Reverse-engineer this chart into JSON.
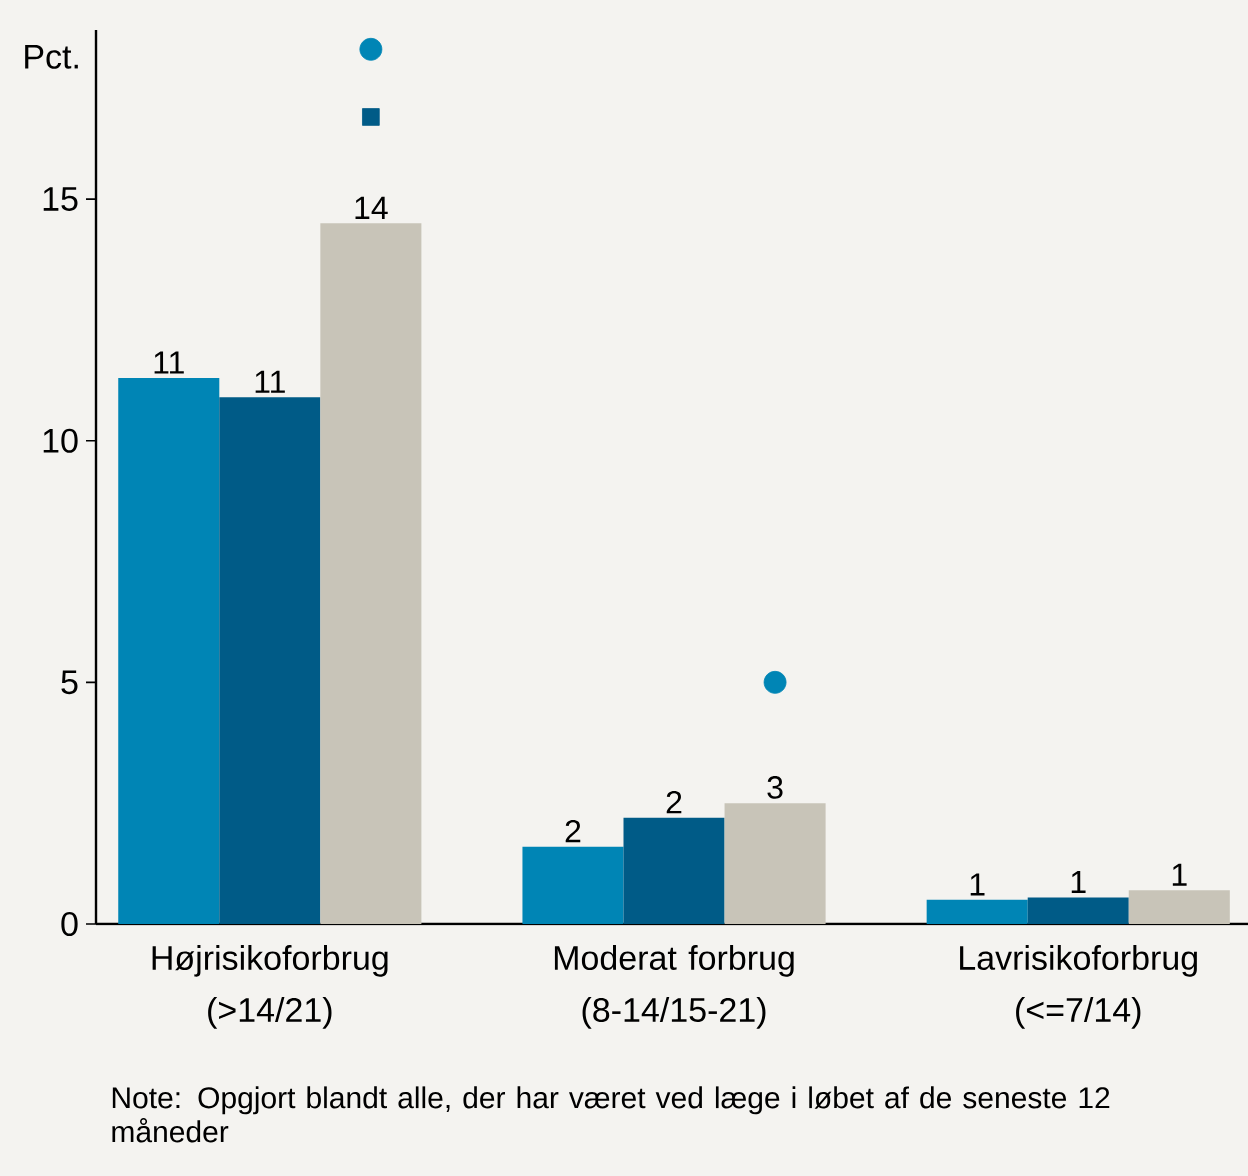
{
  "chart_data": {
    "type": "bar",
    "ylabel": "Pct.",
    "categories": [
      "Højrisikoforbrug (>14/21)",
      "Moderat forbrug (8-14/15-21)",
      "Lavrisikoforbrug (<=7/14)"
    ],
    "series": [
      {
        "color": "#0085b5",
        "values": [
          11.3,
          1.6,
          0.5
        ],
        "value_labels": [
          "11",
          "2",
          "1"
        ]
      },
      {
        "color": "#005b87",
        "values": [
          10.9,
          2.2,
          0.55
        ],
        "value_labels": [
          "11",
          "2",
          "1"
        ]
      },
      {
        "color": "#c8c4b8",
        "values": [
          14.5,
          2.5,
          0.7
        ],
        "value_labels": [
          "14",
          "3",
          "1"
        ]
      },
      {
        "type": "scatter",
        "marker": "circle",
        "color": "#0085b5",
        "values": [
          18.1,
          5.0,
          null
        ]
      },
      {
        "type": "scatter",
        "marker": "square",
        "color": "#005b87",
        "values": [
          16.7,
          null,
          null
        ]
      }
    ],
    "ylim": [
      0,
      18.5
    ],
    "yticks": [
      0,
      5,
      10,
      15
    ],
    "grid": false,
    "annotations": [
      "Note: Opgjort blandt alle, der har været ved læge i løbet af de seneste 12 måneder"
    ]
  }
}
